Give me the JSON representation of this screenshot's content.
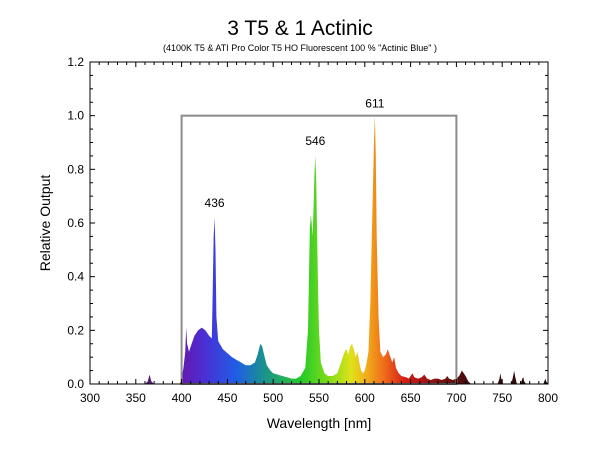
{
  "chart_data": {
    "type": "area",
    "title": "3 T5 & 1 Actinic",
    "subtitle": "(4100K T5 & ATI Pro Color T5 HO Fluorescent 100 % \"Actinic Blue\" )",
    "xlabel": "Wavelength [nm]",
    "ylabel": "Relative Output",
    "xlim": [
      300,
      800
    ],
    "ylim": [
      0,
      1.2
    ],
    "x_ticks": [
      "300",
      "350",
      "400",
      "450",
      "500",
      "550",
      "600",
      "650",
      "700",
      "750",
      "800"
    ],
    "y_ticks": [
      "0.0",
      "0.2",
      "0.4",
      "0.6",
      "0.8",
      "1.0",
      "1.2"
    ],
    "fill": "spectral rainbow gradient",
    "frame_box": {
      "x_range": [
        400,
        700
      ],
      "y_top": 1.0,
      "color": "#8c8c8c"
    },
    "peak_labels": [
      {
        "text": "436",
        "x": 436,
        "y": 0.63
      },
      {
        "text": "546",
        "x": 546,
        "y": 0.86
      },
      {
        "text": "611",
        "x": 611,
        "y": 1.0
      }
    ],
    "series": [
      {
        "points": [
          [
            300,
            0
          ],
          [
            360,
            0
          ],
          [
            363,
            0.01
          ],
          [
            365,
            0.035
          ],
          [
            367,
            0.01
          ],
          [
            370,
            0
          ],
          [
            398,
            0
          ],
          [
            400,
            0.02
          ],
          [
            402,
            0.06
          ],
          [
            404,
            0.12
          ],
          [
            405,
            0.21
          ],
          [
            406,
            0.15
          ],
          [
            408,
            0.12
          ],
          [
            410,
            0.14
          ],
          [
            414,
            0.18
          ],
          [
            418,
            0.2
          ],
          [
            422,
            0.21
          ],
          [
            426,
            0.2
          ],
          [
            430,
            0.18
          ],
          [
            433,
            0.17
          ],
          [
            434,
            0.35
          ],
          [
            435,
            0.55
          ],
          [
            436,
            0.62
          ],
          [
            437,
            0.5
          ],
          [
            438,
            0.25
          ],
          [
            440,
            0.16
          ],
          [
            445,
            0.13
          ],
          [
            450,
            0.115
          ],
          [
            455,
            0.1
          ],
          [
            460,
            0.09
          ],
          [
            465,
            0.08
          ],
          [
            470,
            0.07
          ],
          [
            475,
            0.07
          ],
          [
            480,
            0.08
          ],
          [
            483,
            0.11
          ],
          [
            486,
            0.15
          ],
          [
            488,
            0.14
          ],
          [
            490,
            0.11
          ],
          [
            493,
            0.07
          ],
          [
            497,
            0.05
          ],
          [
            500,
            0.04
          ],
          [
            505,
            0.035
          ],
          [
            510,
            0.03
          ],
          [
            515,
            0.025
          ],
          [
            520,
            0.02
          ],
          [
            525,
            0.02
          ],
          [
            530,
            0.03
          ],
          [
            535,
            0.06
          ],
          [
            538,
            0.2
          ],
          [
            540,
            0.58
          ],
          [
            541,
            0.63
          ],
          [
            542,
            0.6
          ],
          [
            543,
            0.55
          ],
          [
            544,
            0.65
          ],
          [
            545,
            0.78
          ],
          [
            546,
            0.85
          ],
          [
            547,
            0.75
          ],
          [
            548,
            0.55
          ],
          [
            549,
            0.35
          ],
          [
            550,
            0.2
          ],
          [
            552,
            0.08
          ],
          [
            556,
            0.04
          ],
          [
            560,
            0.03
          ],
          [
            565,
            0.03
          ],
          [
            570,
            0.04
          ],
          [
            573,
            0.07
          ],
          [
            576,
            0.1
          ],
          [
            578,
            0.12
          ],
          [
            580,
            0.13
          ],
          [
            582,
            0.11
          ],
          [
            584,
            0.14
          ],
          [
            586,
            0.15
          ],
          [
            588,
            0.13
          ],
          [
            590,
            0.1
          ],
          [
            592,
            0.12
          ],
          [
            594,
            0.08
          ],
          [
            596,
            0.05
          ],
          [
            598,
            0.04
          ],
          [
            600,
            0.05
          ],
          [
            602,
            0.08
          ],
          [
            604,
            0.12
          ],
          [
            606,
            0.3
          ],
          [
            608,
            0.6
          ],
          [
            610,
            0.9
          ],
          [
            611,
            1.0
          ],
          [
            612,
            0.85
          ],
          [
            613,
            0.55
          ],
          [
            615,
            0.25
          ],
          [
            617,
            0.12
          ],
          [
            620,
            0.1
          ],
          [
            623,
            0.11
          ],
          [
            625,
            0.13
          ],
          [
            627,
            0.11
          ],
          [
            630,
            0.08
          ],
          [
            632,
            0.1
          ],
          [
            634,
            0.06
          ],
          [
            637,
            0.04
          ],
          [
            640,
            0.03
          ],
          [
            645,
            0.025
          ],
          [
            648,
            0.02
          ],
          [
            650,
            0.03
          ],
          [
            652,
            0.04
          ],
          [
            654,
            0.025
          ],
          [
            658,
            0.02
          ],
          [
            662,
            0.025
          ],
          [
            665,
            0.035
          ],
          [
            668,
            0.02
          ],
          [
            672,
            0.015
          ],
          [
            676,
            0.02
          ],
          [
            680,
            0.02
          ],
          [
            684,
            0.015
          ],
          [
            688,
            0.02
          ],
          [
            690,
            0.03
          ],
          [
            692,
            0.02
          ],
          [
            696,
            0.015
          ],
          [
            700,
            0.02
          ],
          [
            703,
            0.03
          ],
          [
            706,
            0.05
          ],
          [
            708,
            0.04
          ],
          [
            710,
            0.03
          ],
          [
            713,
            0.01
          ],
          [
            716,
            0
          ],
          [
            745,
            0
          ],
          [
            747,
            0.02
          ],
          [
            748,
            0.04
          ],
          [
            749,
            0.02
          ],
          [
            751,
            0
          ],
          [
            760,
            0
          ],
          [
            762,
            0.03
          ],
          [
            763,
            0.05
          ],
          [
            764,
            0.03
          ],
          [
            766,
            0
          ],
          [
            770,
            0
          ],
          [
            772,
            0.02
          ],
          [
            773,
            0.025
          ],
          [
            774,
            0.01
          ],
          [
            776,
            0
          ],
          [
            795,
            0
          ],
          [
            796,
            0.01
          ],
          [
            797,
            0.02
          ],
          [
            798,
            0.01
          ],
          [
            800,
            0
          ]
        ]
      }
    ]
  }
}
